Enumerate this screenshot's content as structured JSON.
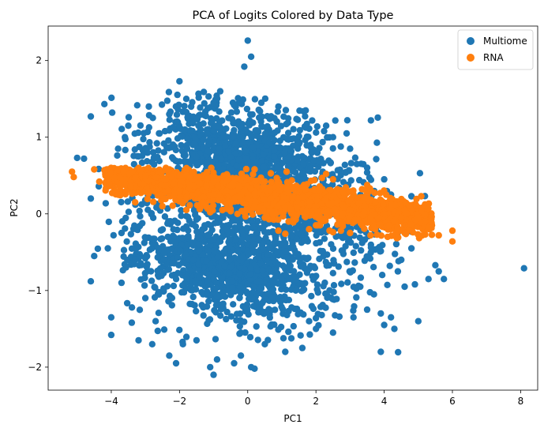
{
  "chart_data": {
    "type": "scatter",
    "title": "PCA of Logits Colored by Data Type",
    "xlabel": "PC1",
    "ylabel": "PC2",
    "xlim": [
      -5.85,
      8.5
    ],
    "ylim": [
      -2.3,
      2.45
    ],
    "xticks": [
      -4,
      -2,
      0,
      2,
      4,
      6,
      8
    ],
    "yticks": [
      -2,
      -1,
      0,
      1,
      2
    ],
    "xtick_labels": [
      "−4",
      "−2",
      "0",
      "2",
      "4",
      "6",
      "8"
    ],
    "ytick_labels": [
      "−2",
      "−1",
      "0",
      "1",
      "2"
    ],
    "grid": false,
    "legend_position": "top-right",
    "series": [
      {
        "name": "Multiome",
        "color": "#1f77b4",
        "points": [
          [
            0,
            2.26
          ],
          [
            0.1,
            2.05
          ],
          [
            -0.1,
            1.92
          ],
          [
            -2.0,
            1.73
          ],
          [
            -4.6,
            1.27
          ],
          [
            -2.9,
            1.4
          ],
          [
            -2.3,
            1.3
          ],
          [
            -1.8,
            1.5
          ],
          [
            -1.0,
            1.45
          ],
          [
            -0.4,
            1.42
          ],
          [
            0.4,
            1.45
          ],
          [
            0.9,
            1.4
          ],
          [
            1.7,
            1.35
          ],
          [
            2.3,
            1.15
          ],
          [
            2.5,
            1.0
          ],
          [
            2.9,
            1.05
          ],
          [
            3.0,
            0.85
          ],
          [
            3.2,
            0.65
          ],
          [
            3.5,
            0.6
          ],
          [
            4.0,
            0.45
          ],
          [
            4.2,
            0.25
          ],
          [
            5.05,
            0.53
          ],
          [
            4.8,
            0.23
          ],
          [
            -5.0,
            0.73
          ],
          [
            -4.8,
            0.72
          ],
          [
            -3.8,
            0.85
          ],
          [
            -3.5,
            1.15
          ],
          [
            -4.6,
            0.2
          ],
          [
            -4.5,
            -0.55
          ],
          [
            -4.1,
            -0.45
          ],
          [
            -4.6,
            -0.88
          ],
          [
            -3.7,
            -0.9
          ],
          [
            -4.0,
            -1.35
          ],
          [
            -4.0,
            -1.58
          ],
          [
            -3.4,
            -1.42
          ],
          [
            -3.2,
            -1.65
          ],
          [
            -2.8,
            -1.7
          ],
          [
            -2.3,
            -1.85
          ],
          [
            -2.1,
            -1.95
          ],
          [
            -1.9,
            -1.7
          ],
          [
            -1.5,
            -1.65
          ],
          [
            -1.0,
            -2.1
          ],
          [
            -1.1,
            -2.0
          ],
          [
            -0.9,
            -1.9
          ],
          [
            -0.4,
            -1.95
          ],
          [
            -0.2,
            -1.85
          ],
          [
            0.1,
            -2.0
          ],
          [
            0.2,
            -2.02
          ],
          [
            0.5,
            -1.7
          ],
          [
            1.1,
            -1.8
          ],
          [
            1.6,
            -1.75
          ],
          [
            2.0,
            -1.5
          ],
          [
            2.5,
            -1.55
          ],
          [
            3.1,
            -1.35
          ],
          [
            3.5,
            -1.25
          ],
          [
            3.9,
            -1.3
          ],
          [
            3.9,
            -1.8
          ],
          [
            4.0,
            -1.45
          ],
          [
            4.2,
            -1.35
          ],
          [
            4.3,
            -1.5
          ],
          [
            5.0,
            -1.4
          ],
          [
            4.6,
            -0.95
          ],
          [
            4.4,
            -0.75
          ],
          [
            4.5,
            -0.6
          ],
          [
            4.8,
            -0.45
          ],
          [
            4.9,
            -0.92
          ],
          [
            5.3,
            -0.85
          ],
          [
            5.6,
            -0.75
          ],
          [
            5.75,
            -0.85
          ],
          [
            5.5,
            -0.67
          ],
          [
            8.1,
            -0.71
          ],
          [
            -3.6,
            1.0
          ],
          [
            -3.2,
            0.75
          ],
          [
            -2.6,
            1.05
          ],
          [
            -1.5,
            0.65
          ],
          [
            1.6,
            0.75
          ],
          [
            2.2,
            0.55
          ],
          [
            -3.7,
            -0.25
          ],
          [
            -3.3,
            -0.6
          ],
          [
            -3.0,
            -1.1
          ],
          [
            -2.7,
            -1.4
          ],
          [
            3.3,
            -0.95
          ],
          [
            3.7,
            -1.05
          ],
          [
            1.8,
            -1.4
          ],
          [
            -0.2,
            -1.55
          ]
        ]
      },
      {
        "name": "RNA",
        "color": "#ff7f0e",
        "points": [
          [
            -5.15,
            0.55
          ],
          [
            -5.1,
            0.48
          ],
          [
            -4.5,
            0.58
          ],
          [
            -4.2,
            0.57
          ],
          [
            -4.35,
            0.42
          ],
          [
            -3.9,
            0.47
          ],
          [
            -3.6,
            0.45
          ],
          [
            -3.3,
            0.47
          ],
          [
            -3.0,
            0.5
          ],
          [
            -2.7,
            0.48
          ],
          [
            -2.4,
            0.45
          ],
          [
            -2.0,
            0.5
          ],
          [
            -1.7,
            0.48
          ],
          [
            -1.4,
            0.4
          ],
          [
            -1.0,
            0.42
          ],
          [
            -0.6,
            0.44
          ],
          [
            -0.2,
            0.46
          ],
          [
            0.2,
            0.58
          ],
          [
            0.5,
            0.42
          ],
          [
            0.9,
            0.38
          ],
          [
            1.3,
            0.35
          ],
          [
            1.7,
            0.32
          ],
          [
            2.1,
            0.3
          ],
          [
            2.5,
            0.45
          ],
          [
            2.8,
            0.28
          ],
          [
            3.1,
            0.25
          ],
          [
            3.5,
            0.2
          ],
          [
            3.9,
            0.18
          ],
          [
            4.2,
            0.12
          ],
          [
            4.6,
            0.05
          ],
          [
            5.0,
            -0.05
          ],
          [
            5.3,
            -0.18
          ],
          [
            5.6,
            -0.28
          ],
          [
            6.0,
            -0.22
          ],
          [
            6.0,
            -0.36
          ],
          [
            -3.8,
            0.25
          ],
          [
            -3.3,
            0.15
          ],
          [
            -2.5,
            0.1
          ],
          [
            -1.8,
            0.05
          ],
          [
            -1.1,
            0.02
          ],
          [
            -0.3,
            0.0
          ],
          [
            0.5,
            -0.05
          ],
          [
            1.2,
            -0.1
          ],
          [
            1.8,
            -0.2
          ],
          [
            2.4,
            -0.22
          ],
          [
            3.0,
            -0.25
          ],
          [
            3.6,
            -0.28
          ],
          [
            4.1,
            -0.3
          ],
          [
            4.6,
            -0.25
          ],
          [
            1.1,
            -0.26
          ],
          [
            0.9,
            -0.22
          ],
          [
            2.0,
            -0.15
          ],
          [
            -2.0,
            0.3
          ],
          [
            -1.0,
            0.25
          ],
          [
            0.0,
            0.2
          ],
          [
            1.0,
            0.15
          ],
          [
            2.0,
            0.1
          ],
          [
            3.0,
            0.05
          ],
          [
            4.0,
            0.0
          ],
          [
            5.2,
            -0.1
          ]
        ]
      }
    ]
  }
}
